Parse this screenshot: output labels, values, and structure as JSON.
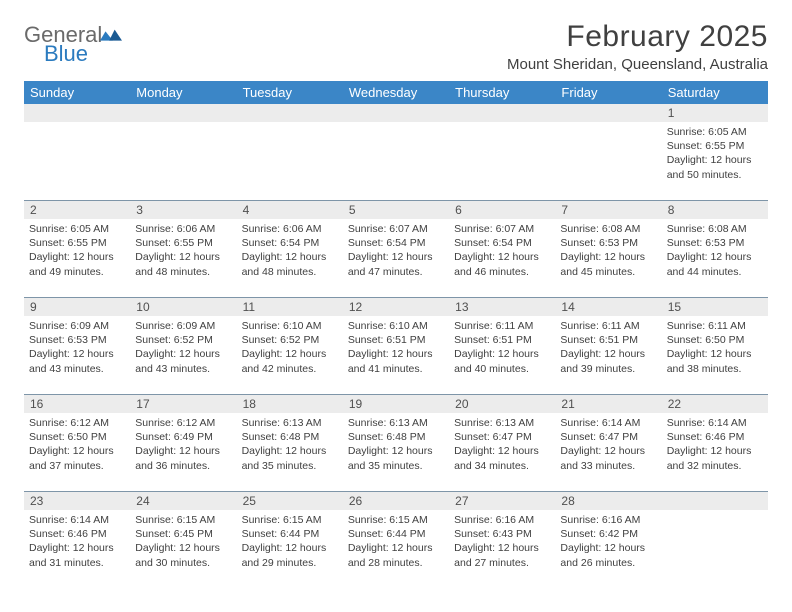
{
  "brand": {
    "word1": "General",
    "word2": "Blue"
  },
  "title": "February 2025",
  "location": "Mount Sheridan, Queensland, Australia",
  "day_headers": [
    "Sunday",
    "Monday",
    "Tuesday",
    "Wednesday",
    "Thursday",
    "Friday",
    "Saturday"
  ],
  "colors": {
    "header_bg": "#3b86c7",
    "header_text": "#ffffff",
    "daynum_bg": "#ececec",
    "text": "#404040",
    "rule": "#7e95a8"
  },
  "typography": {
    "title_fontsize": 30,
    "location_fontsize": 15,
    "dayhead_fontsize": 13,
    "daynum_fontsize": 12,
    "cell_fontsize": 10.5
  },
  "weeks": [
    [
      null,
      null,
      null,
      null,
      null,
      null,
      {
        "n": "1",
        "sunrise": "Sunrise: 6:05 AM",
        "sunset": "Sunset: 6:55 PM",
        "day1": "Daylight: 12 hours",
        "day2": "and 50 minutes."
      }
    ],
    [
      {
        "n": "2",
        "sunrise": "Sunrise: 6:05 AM",
        "sunset": "Sunset: 6:55 PM",
        "day1": "Daylight: 12 hours",
        "day2": "and 49 minutes."
      },
      {
        "n": "3",
        "sunrise": "Sunrise: 6:06 AM",
        "sunset": "Sunset: 6:55 PM",
        "day1": "Daylight: 12 hours",
        "day2": "and 48 minutes."
      },
      {
        "n": "4",
        "sunrise": "Sunrise: 6:06 AM",
        "sunset": "Sunset: 6:54 PM",
        "day1": "Daylight: 12 hours",
        "day2": "and 48 minutes."
      },
      {
        "n": "5",
        "sunrise": "Sunrise: 6:07 AM",
        "sunset": "Sunset: 6:54 PM",
        "day1": "Daylight: 12 hours",
        "day2": "and 47 minutes."
      },
      {
        "n": "6",
        "sunrise": "Sunrise: 6:07 AM",
        "sunset": "Sunset: 6:54 PM",
        "day1": "Daylight: 12 hours",
        "day2": "and 46 minutes."
      },
      {
        "n": "7",
        "sunrise": "Sunrise: 6:08 AM",
        "sunset": "Sunset: 6:53 PM",
        "day1": "Daylight: 12 hours",
        "day2": "and 45 minutes."
      },
      {
        "n": "8",
        "sunrise": "Sunrise: 6:08 AM",
        "sunset": "Sunset: 6:53 PM",
        "day1": "Daylight: 12 hours",
        "day2": "and 44 minutes."
      }
    ],
    [
      {
        "n": "9",
        "sunrise": "Sunrise: 6:09 AM",
        "sunset": "Sunset: 6:53 PM",
        "day1": "Daylight: 12 hours",
        "day2": "and 43 minutes."
      },
      {
        "n": "10",
        "sunrise": "Sunrise: 6:09 AM",
        "sunset": "Sunset: 6:52 PM",
        "day1": "Daylight: 12 hours",
        "day2": "and 43 minutes."
      },
      {
        "n": "11",
        "sunrise": "Sunrise: 6:10 AM",
        "sunset": "Sunset: 6:52 PM",
        "day1": "Daylight: 12 hours",
        "day2": "and 42 minutes."
      },
      {
        "n": "12",
        "sunrise": "Sunrise: 6:10 AM",
        "sunset": "Sunset: 6:51 PM",
        "day1": "Daylight: 12 hours",
        "day2": "and 41 minutes."
      },
      {
        "n": "13",
        "sunrise": "Sunrise: 6:11 AM",
        "sunset": "Sunset: 6:51 PM",
        "day1": "Daylight: 12 hours",
        "day2": "and 40 minutes."
      },
      {
        "n": "14",
        "sunrise": "Sunrise: 6:11 AM",
        "sunset": "Sunset: 6:51 PM",
        "day1": "Daylight: 12 hours",
        "day2": "and 39 minutes."
      },
      {
        "n": "15",
        "sunrise": "Sunrise: 6:11 AM",
        "sunset": "Sunset: 6:50 PM",
        "day1": "Daylight: 12 hours",
        "day2": "and 38 minutes."
      }
    ],
    [
      {
        "n": "16",
        "sunrise": "Sunrise: 6:12 AM",
        "sunset": "Sunset: 6:50 PM",
        "day1": "Daylight: 12 hours",
        "day2": "and 37 minutes."
      },
      {
        "n": "17",
        "sunrise": "Sunrise: 6:12 AM",
        "sunset": "Sunset: 6:49 PM",
        "day1": "Daylight: 12 hours",
        "day2": "and 36 minutes."
      },
      {
        "n": "18",
        "sunrise": "Sunrise: 6:13 AM",
        "sunset": "Sunset: 6:48 PM",
        "day1": "Daylight: 12 hours",
        "day2": "and 35 minutes."
      },
      {
        "n": "19",
        "sunrise": "Sunrise: 6:13 AM",
        "sunset": "Sunset: 6:48 PM",
        "day1": "Daylight: 12 hours",
        "day2": "and 35 minutes."
      },
      {
        "n": "20",
        "sunrise": "Sunrise: 6:13 AM",
        "sunset": "Sunset: 6:47 PM",
        "day1": "Daylight: 12 hours",
        "day2": "and 34 minutes."
      },
      {
        "n": "21",
        "sunrise": "Sunrise: 6:14 AM",
        "sunset": "Sunset: 6:47 PM",
        "day1": "Daylight: 12 hours",
        "day2": "and 33 minutes."
      },
      {
        "n": "22",
        "sunrise": "Sunrise: 6:14 AM",
        "sunset": "Sunset: 6:46 PM",
        "day1": "Daylight: 12 hours",
        "day2": "and 32 minutes."
      }
    ],
    [
      {
        "n": "23",
        "sunrise": "Sunrise: 6:14 AM",
        "sunset": "Sunset: 6:46 PM",
        "day1": "Daylight: 12 hours",
        "day2": "and 31 minutes."
      },
      {
        "n": "24",
        "sunrise": "Sunrise: 6:15 AM",
        "sunset": "Sunset: 6:45 PM",
        "day1": "Daylight: 12 hours",
        "day2": "and 30 minutes."
      },
      {
        "n": "25",
        "sunrise": "Sunrise: 6:15 AM",
        "sunset": "Sunset: 6:44 PM",
        "day1": "Daylight: 12 hours",
        "day2": "and 29 minutes."
      },
      {
        "n": "26",
        "sunrise": "Sunrise: 6:15 AM",
        "sunset": "Sunset: 6:44 PM",
        "day1": "Daylight: 12 hours",
        "day2": "and 28 minutes."
      },
      {
        "n": "27",
        "sunrise": "Sunrise: 6:16 AM",
        "sunset": "Sunset: 6:43 PM",
        "day1": "Daylight: 12 hours",
        "day2": "and 27 minutes."
      },
      {
        "n": "28",
        "sunrise": "Sunrise: 6:16 AM",
        "sunset": "Sunset: 6:42 PM",
        "day1": "Daylight: 12 hours",
        "day2": "and 26 minutes."
      },
      null
    ]
  ]
}
